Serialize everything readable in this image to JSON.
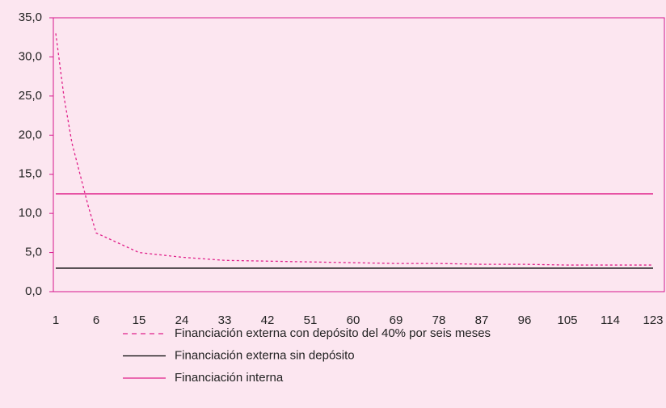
{
  "chart_data": {
    "type": "line",
    "categories": [
      "1",
      null,
      null,
      null,
      null,
      "6",
      "15",
      "24",
      "33",
      "42",
      "51",
      "60",
      "69",
      "78",
      "87",
      "96",
      "105",
      "114",
      "123"
    ],
    "series": [
      {
        "name": "Financiación externa con depósito del 40% por seis meses",
        "color": "#e0218a",
        "dash": true,
        "values": [
          33,
          25,
          19,
          15,
          11,
          7.5,
          5,
          4.4,
          4,
          3.9,
          3.8,
          3.7,
          3.6,
          3.6,
          3.5,
          3.5,
          3.4,
          3.4,
          3.4
        ]
      },
      {
        "name": "Financiación externa sin depósito",
        "color": "#000000",
        "dash": false,
        "values": [
          3,
          3,
          3,
          3,
          3,
          3,
          3,
          3,
          3,
          3,
          3,
          3,
          3,
          3,
          3,
          3,
          3,
          3,
          3
        ]
      },
      {
        "name": "Financiación interna",
        "color": "#e0218a",
        "dash": false,
        "values": [
          12.5,
          12.5,
          12.5,
          12.5,
          12.5,
          12.5,
          12.5,
          12.5,
          12.5,
          12.5,
          12.5,
          12.5,
          12.5,
          12.5,
          12.5,
          12.5,
          12.5,
          12.5,
          12.5
        ]
      }
    ],
    "ylim": [
      0,
      35
    ],
    "yticks": [
      {
        "value": 0,
        "label": "0,0"
      },
      {
        "value": 5,
        "label": "5,0"
      },
      {
        "value": 10,
        "label": "10,0"
      },
      {
        "value": 15,
        "label": "15,0"
      },
      {
        "value": 20,
        "label": "20,0"
      },
      {
        "value": 25,
        "label": "25,0"
      },
      {
        "value": 30,
        "label": "30,0"
      },
      {
        "value": 35,
        "label": "35,0"
      }
    ],
    "grid": false
  }
}
